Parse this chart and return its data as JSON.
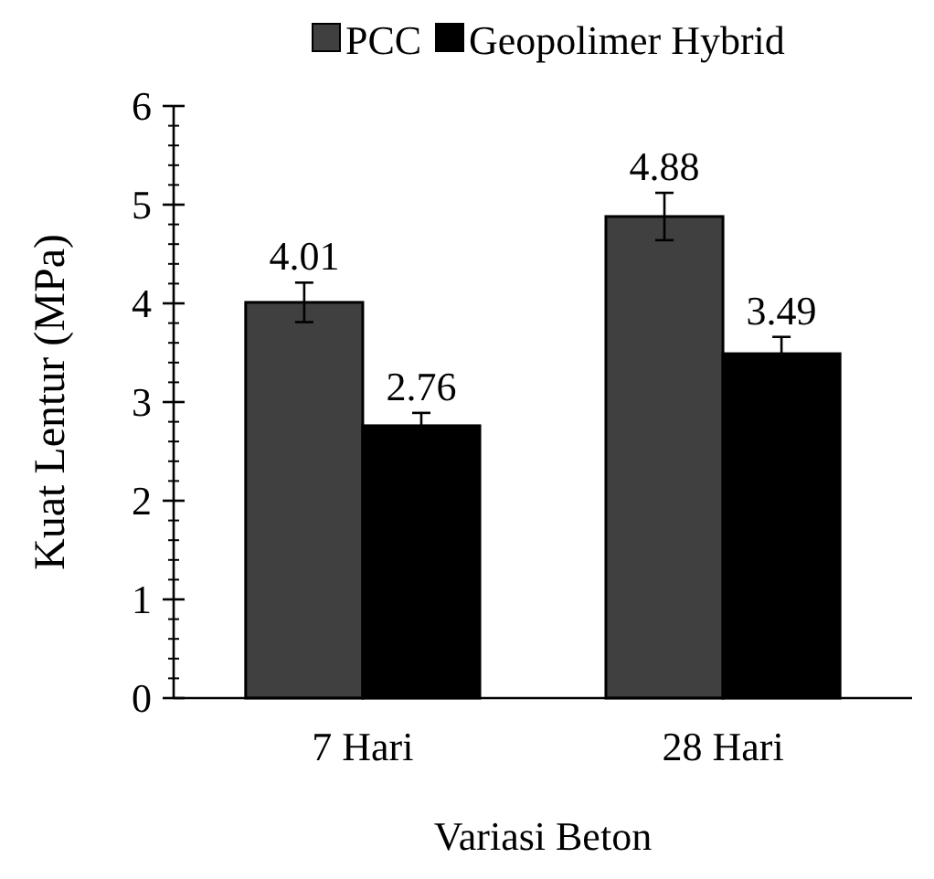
{
  "chart_data": {
    "type": "bar",
    "xlabel": "Variasi Beton",
    "ylabel": "Kuat Lentur (MPa)",
    "categories": [
      "7 Hari",
      "28 Hari"
    ],
    "series": [
      {
        "name": "PCC",
        "color": "#404040",
        "values": [
          4.01,
          4.88
        ],
        "errors": [
          0.2,
          0.24
        ]
      },
      {
        "name": "Geopolimer Hybrid",
        "color": "#000000",
        "values": [
          2.76,
          3.49
        ],
        "errors": [
          0.13,
          0.17
        ]
      }
    ],
    "ylim": [
      0,
      6
    ],
    "yticks": [
      0,
      1,
      2,
      3,
      4,
      5,
      6
    ],
    "data_labels": true,
    "legend": "top",
    "grid": false
  }
}
